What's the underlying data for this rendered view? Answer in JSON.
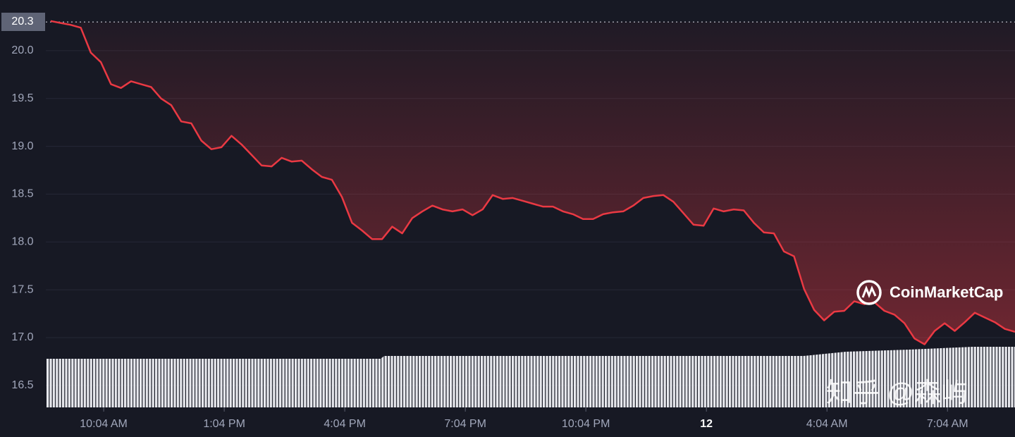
{
  "chart_data": {
    "type": "line",
    "color": "#ea3943",
    "reference_value": 20.3,
    "watermark": "CoinMarketCap",
    "credit": "知乎 @森屿",
    "grid": true,
    "x": [
      8.75,
      9,
      9.25,
      9.5,
      9.75,
      10,
      10.25,
      10.5,
      10.75,
      11,
      11.25,
      11.5,
      11.75,
      12,
      12.25,
      12.5,
      12.75,
      13,
      13.25,
      13.5,
      13.75,
      14,
      14.25,
      14.5,
      14.75,
      15,
      15.25,
      15.5,
      15.75,
      16,
      16.25,
      16.5,
      16.75,
      17,
      17.25,
      17.5,
      17.75,
      18,
      18.25,
      18.5,
      18.75,
      19,
      19.25,
      19.5,
      19.75,
      20,
      20.25,
      20.5,
      20.75,
      21,
      21.25,
      21.5,
      21.75,
      22,
      22.25,
      22.5,
      22.75,
      23,
      23.25,
      23.5,
      23.75,
      24,
      24.25,
      24.5,
      24.75,
      25,
      25.25,
      25.5,
      25.75,
      26,
      26.25,
      26.5,
      26.75,
      27,
      27.25,
      27.5,
      27.75,
      28,
      28.25,
      28.5,
      28.75,
      29,
      29.25,
      29.5,
      29.75,
      30,
      30.25,
      30.5,
      30.75,
      31,
      31.25,
      31.5,
      31.75,
      32,
      32.25,
      32.5,
      32.75
    ],
    "values": [
      20.31,
      20.29,
      20.27,
      20.24,
      19.98,
      19.88,
      19.65,
      19.61,
      19.68,
      19.65,
      19.62,
      19.5,
      19.43,
      19.26,
      19.24,
      19.06,
      18.97,
      18.99,
      19.11,
      19.02,
      18.91,
      18.8,
      18.79,
      18.88,
      18.84,
      18.85,
      18.76,
      18.68,
      18.65,
      18.47,
      18.2,
      18.12,
      18.03,
      18.03,
      18.16,
      18.09,
      18.25,
      18.32,
      18.38,
      18.34,
      18.32,
      18.34,
      18.28,
      18.34,
      18.49,
      18.45,
      18.46,
      18.43,
      18.4,
      18.37,
      18.37,
      18.32,
      18.29,
      18.24,
      18.24,
      18.29,
      18.31,
      18.32,
      18.38,
      18.46,
      18.48,
      18.49,
      18.42,
      18.3,
      18.18,
      18.17,
      18.35,
      18.32,
      18.34,
      18.33,
      18.2,
      18.1,
      18.09,
      17.9,
      17.85,
      17.51,
      17.29,
      17.18,
      17.27,
      17.28,
      17.38,
      17.35,
      17.37,
      17.28,
      17.24,
      17.15,
      16.99,
      16.93,
      17.07,
      17.15,
      17.07,
      17.16,
      17.26,
      17.21,
      17.16,
      17.09,
      17.06
    ],
    "xlim": [
      8.63,
      32.75
    ],
    "ylim": [
      16.27,
      20.53
    ],
    "xticks": [
      {
        "value": 10.07,
        "label": "10:04 AM"
      },
      {
        "value": 13.07,
        "label": "1:04 PM"
      },
      {
        "value": 16.07,
        "label": "4:04 PM"
      },
      {
        "value": 19.07,
        "label": "7:04 PM"
      },
      {
        "value": 22.07,
        "label": "10:04 PM"
      },
      {
        "value": 25.07,
        "label": "12"
      },
      {
        "value": 28.07,
        "label": "4:04 AM"
      },
      {
        "value": 31.07,
        "label": "7:04 AM"
      }
    ],
    "yticks": [
      16.5,
      {
        "value": 17,
        "label": "17.0"
      },
      17.5,
      {
        "value": 18,
        "label": "18.0"
      },
      18.5,
      {
        "value": 19,
        "label": "19.0"
      },
      19.5,
      {
        "value": 20,
        "label": "20.0"
      }
    ]
  }
}
